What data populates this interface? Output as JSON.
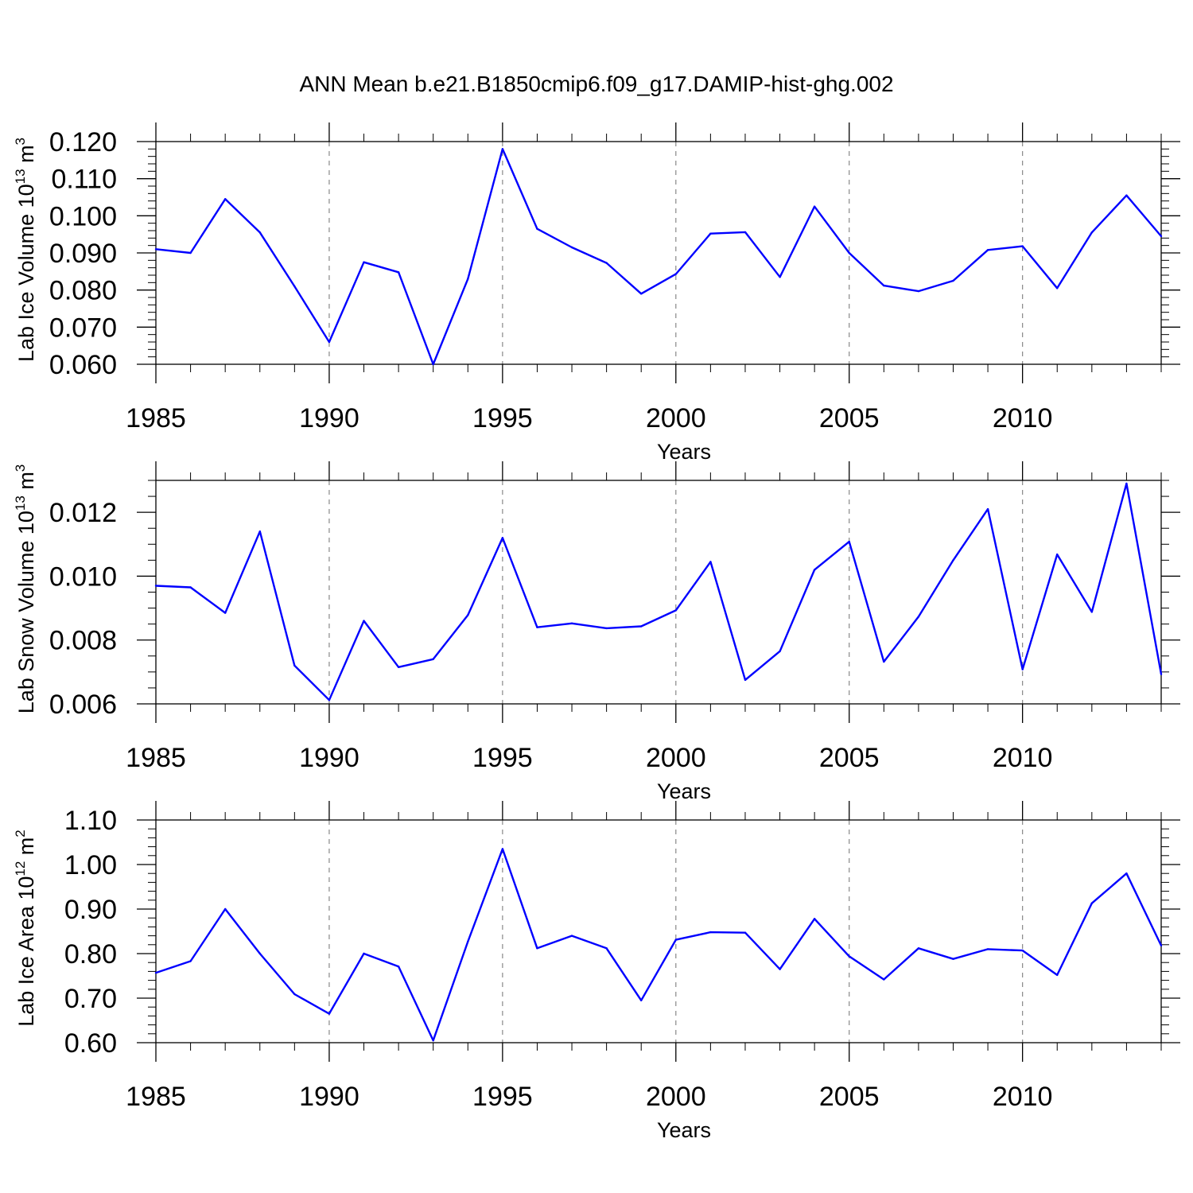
{
  "title": "ANN Mean b.e21.B1850cmip6.f09_g17.DAMIP-hist-ghg.002",
  "chart_data": [
    {
      "type": "line",
      "ylabel": "Lab Ice Volume 10",
      "ylabel_exp": "13",
      "ylabel_unit": " m",
      "ylabel_unit_exp": "3",
      "xlabel": "Years",
      "xlim": [
        1985,
        2014
      ],
      "ylim": [
        0.06,
        0.12
      ],
      "x_ticks": [
        1985,
        1990,
        1995,
        2000,
        2005,
        2010
      ],
      "x_tick_labels": [
        "1985",
        "1990",
        "1995",
        "2000",
        "2005",
        "2010"
      ],
      "y_ticks": [
        0.06,
        0.07,
        0.08,
        0.09,
        0.1,
        0.11,
        0.12
      ],
      "y_tick_labels": [
        "0.060",
        "0.070",
        "0.080",
        "0.090",
        "0.100",
        "0.110",
        "0.120"
      ],
      "y_minor_step": 0.002,
      "grid": "dashed vertical at major x ticks",
      "color": "#0000ff",
      "x": [
        1985,
        1986,
        1987,
        1988,
        1989,
        1990,
        1991,
        1992,
        1993,
        1994,
        1995,
        1996,
        1997,
        1998,
        1999,
        2000,
        2001,
        2002,
        2003,
        2004,
        2005,
        2006,
        2007,
        2008,
        2009,
        2010,
        2011,
        2012,
        2013,
        2014
      ],
      "values": [
        0.091,
        0.09,
        0.1045,
        0.0955,
        0.081,
        0.066,
        0.0875,
        0.0848,
        0.06,
        0.083,
        0.118,
        0.0965,
        0.0915,
        0.0873,
        0.079,
        0.0843,
        0.0952,
        0.0956,
        0.0835,
        0.1025,
        0.09,
        0.0812,
        0.0797,
        0.0825,
        0.0908,
        0.0918,
        0.0805,
        0.0955,
        0.1055,
        0.0945
      ]
    },
    {
      "type": "line",
      "ylabel": "Lab Snow Volume 10",
      "ylabel_exp": "13",
      "ylabel_unit": " m",
      "ylabel_unit_exp": "3",
      "xlabel": "Years",
      "xlim": [
        1985,
        2014
      ],
      "ylim": [
        0.006,
        0.013
      ],
      "x_ticks": [
        1985,
        1990,
        1995,
        2000,
        2005,
        2010
      ],
      "x_tick_labels": [
        "1985",
        "1990",
        "1995",
        "2000",
        "2005",
        "2010"
      ],
      "y_ticks": [
        0.006,
        0.008,
        0.01,
        0.012
      ],
      "y_tick_labels": [
        "0.006",
        "0.008",
        "0.010",
        "0.012"
      ],
      "y_minor_step": 0.0005,
      "grid": "dashed vertical at major x ticks",
      "color": "#0000ff",
      "x": [
        1985,
        1986,
        1987,
        1988,
        1989,
        1990,
        1991,
        1992,
        1993,
        1994,
        1995,
        1996,
        1997,
        1998,
        1999,
        2000,
        2001,
        2002,
        2003,
        2004,
        2005,
        2006,
        2007,
        2008,
        2009,
        2010,
        2011,
        2012,
        2013,
        2014
      ],
      "values": [
        0.0097,
        0.00965,
        0.00885,
        0.0114,
        0.0072,
        0.00612,
        0.0086,
        0.00715,
        0.0074,
        0.00878,
        0.0112,
        0.0084,
        0.00852,
        0.00837,
        0.00843,
        0.00893,
        0.01045,
        0.00675,
        0.00765,
        0.0102,
        0.01108,
        0.00732,
        0.00873,
        0.0105,
        0.0121,
        0.00708,
        0.01068,
        0.00888,
        0.0129,
        0.00693
      ]
    },
    {
      "type": "line",
      "ylabel": "Lab Ice Area 10",
      "ylabel_exp": "12",
      "ylabel_unit": " m",
      "ylabel_unit_exp": "2",
      "xlabel": "Years",
      "xlim": [
        1985,
        2014
      ],
      "ylim": [
        0.6,
        1.1
      ],
      "x_ticks": [
        1985,
        1990,
        1995,
        2000,
        2005,
        2010
      ],
      "x_tick_labels": [
        "1985",
        "1990",
        "1995",
        "2000",
        "2005",
        "2010"
      ],
      "y_ticks": [
        0.6,
        0.7,
        0.8,
        0.9,
        1.0,
        1.1
      ],
      "y_tick_labels": [
        "0.60",
        "0.70",
        "0.80",
        "0.90",
        "1.00",
        "1.10"
      ],
      "y_minor_step": 0.02,
      "grid": "dashed vertical at major x ticks",
      "color": "#0000ff",
      "x": [
        1985,
        1986,
        1987,
        1988,
        1989,
        1990,
        1991,
        1992,
        1993,
        1994,
        1995,
        1996,
        1997,
        1998,
        1999,
        2000,
        2001,
        2002,
        2003,
        2004,
        2005,
        2006,
        2007,
        2008,
        2009,
        2010,
        2011,
        2012,
        2013,
        2014
      ],
      "values": [
        0.757,
        0.783,
        0.9,
        0.8,
        0.709,
        0.665,
        0.8,
        0.771,
        0.605,
        0.827,
        1.035,
        0.812,
        0.84,
        0.812,
        0.695,
        0.831,
        0.848,
        0.847,
        0.765,
        0.878,
        0.794,
        0.742,
        0.812,
        0.788,
        0.81,
        0.807,
        0.752,
        0.913,
        0.98,
        0.818
      ]
    }
  ]
}
